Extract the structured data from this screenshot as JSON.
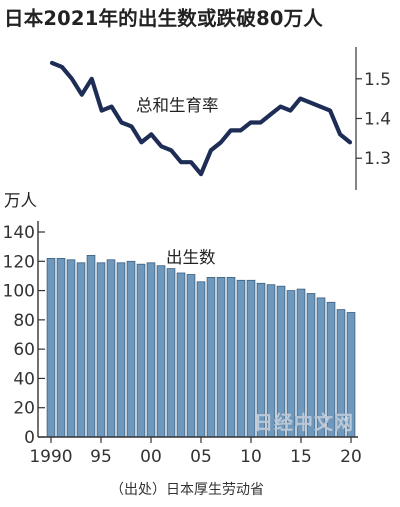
{
  "title": "日本2021年的出生数或跌破80万人",
  "source": "（出处）日本厚生劳动省",
  "watermark": "日经中文网",
  "colors": {
    "line": "#1d2d56",
    "bar": "#6f98bd",
    "bar_edge": "#3e5f7f",
    "axis": "#333333"
  },
  "chart_data": [
    {
      "type": "line",
      "label": "总和生育率",
      "yticks": [
        1.3,
        1.4,
        1.5
      ],
      "ylim": [
        1.22,
        1.58
      ],
      "x": [
        1990,
        1991,
        1992,
        1993,
        1994,
        1995,
        1996,
        1997,
        1998,
        1999,
        2000,
        2001,
        2002,
        2003,
        2004,
        2005,
        2006,
        2007,
        2008,
        2009,
        2010,
        2011,
        2012,
        2013,
        2014,
        2015,
        2016,
        2017,
        2018,
        2019,
        2020
      ],
      "values": [
        1.54,
        1.53,
        1.5,
        1.46,
        1.5,
        1.42,
        1.43,
        1.39,
        1.38,
        1.34,
        1.36,
        1.33,
        1.32,
        1.29,
        1.29,
        1.26,
        1.32,
        1.34,
        1.37,
        1.37,
        1.39,
        1.39,
        1.41,
        1.43,
        1.42,
        1.45,
        1.44,
        1.43,
        1.42,
        1.36,
        1.34
      ]
    },
    {
      "type": "bar",
      "label": "出生数",
      "unit": "万人",
      "yticks": [
        0,
        20,
        40,
        60,
        80,
        100,
        120,
        140
      ],
      "ylim": [
        0,
        145
      ],
      "xticks": [
        "1990",
        "95",
        "00",
        "05",
        "10",
        "15",
        "20"
      ],
      "x": [
        1990,
        1991,
        1992,
        1993,
        1994,
        1995,
        1996,
        1997,
        1998,
        1999,
        2000,
        2001,
        2002,
        2003,
        2004,
        2005,
        2006,
        2007,
        2008,
        2009,
        2010,
        2011,
        2012,
        2013,
        2014,
        2015,
        2016,
        2017,
        2018,
        2019,
        2020
      ],
      "values": [
        122,
        122,
        121,
        119,
        124,
        119,
        121,
        119,
        120,
        118,
        119,
        117,
        115,
        112,
        111,
        106,
        109,
        109,
        109,
        107,
        107,
        105,
        104,
        103,
        100,
        101,
        98,
        95,
        92,
        87,
        85
      ]
    }
  ]
}
